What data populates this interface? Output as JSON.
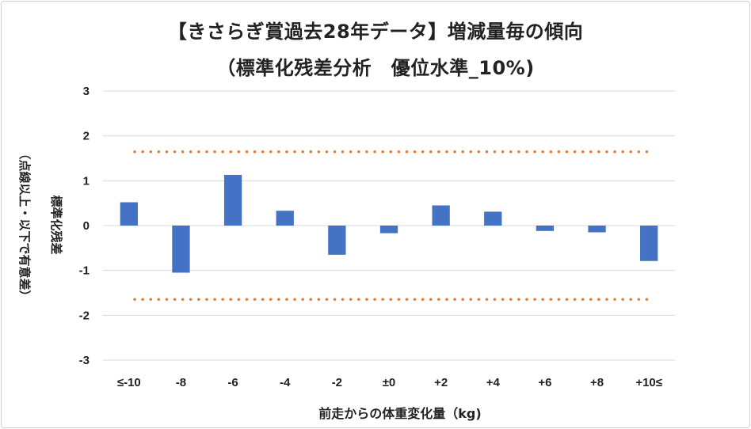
{
  "chart_data": {
    "type": "bar",
    "title": "【きさらぎ賞過去28年データ】増減量毎の傾向",
    "subtitle": "（標準化残差分析　優位水準_10%)",
    "xlabel": "前走からの体重変化量（kg)",
    "ylabel": "標準化残差",
    "ylabel_note": "（点線以上・以下で有意差）",
    "categories": [
      "≤-10",
      "-8",
      "-6",
      "-4",
      "-2",
      "±0",
      "+2",
      "+4",
      "+6",
      "+8",
      "+10≤"
    ],
    "values": [
      0.52,
      -1.05,
      1.13,
      0.33,
      -0.65,
      -0.17,
      0.45,
      0.31,
      -0.12,
      -0.15,
      -0.79
    ],
    "ylim": [
      -3,
      3
    ],
    "yticks": [
      "-3",
      "-2",
      "-1",
      "0",
      "1",
      "2",
      "3"
    ],
    "thresholds": [
      1.645,
      -1.645
    ],
    "grid": true,
    "bar_color": "#4472c4",
    "threshold_color": "#ed7d31",
    "grid_color": "#d9d9d9"
  }
}
